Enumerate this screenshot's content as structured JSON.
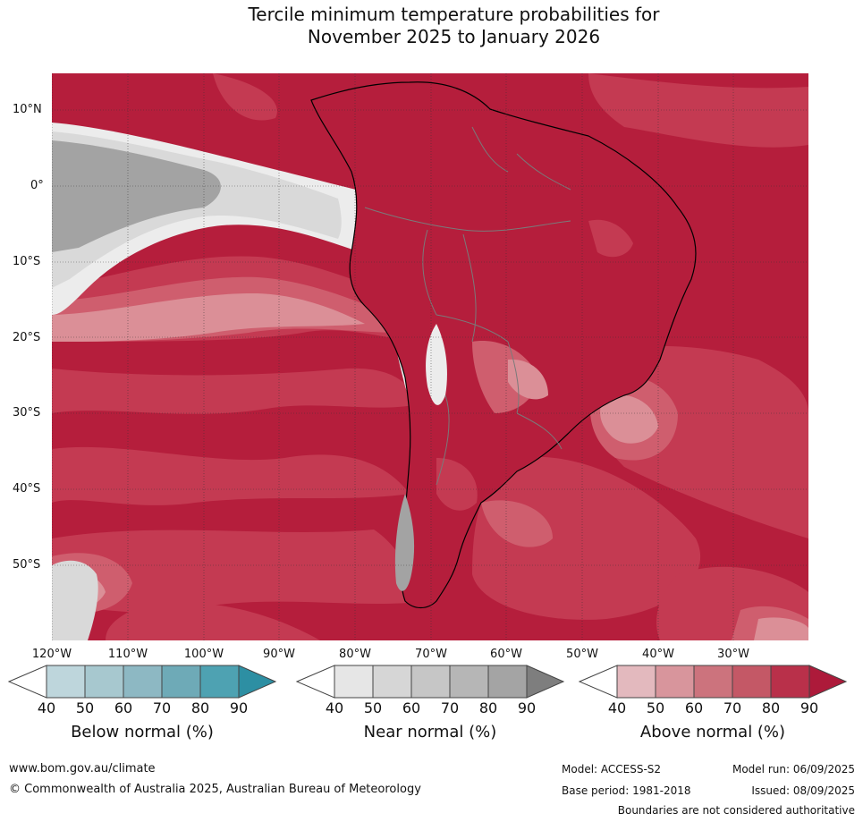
{
  "title": {
    "line1": "Tercile minimum temperature probabilities for",
    "line2": "November 2025 to January 2026"
  },
  "map": {
    "lat_labels": [
      "10°N",
      "0°",
      "10°S",
      "20°S",
      "30°S",
      "40°S",
      "50°S"
    ],
    "lon_labels": [
      "120°W",
      "110°W",
      "100°W",
      "90°W",
      "80°W",
      "70°W",
      "60°W",
      "50°W",
      "40°W",
      "30°W"
    ],
    "colors": {
      "ocean_above": "#b51e3c",
      "above_80": "#c43a52",
      "above_70": "#cf5e6e",
      "above_60": "#db8f97",
      "near_90": "#a3a3a3",
      "near_50": "#d9d9d9",
      "near_40": "#ececec",
      "coast": "#000000",
      "borders": "#7a7a7a"
    }
  },
  "legends": [
    {
      "title": "Below normal (%)",
      "ticks": [
        "40",
        "50",
        "60",
        "70",
        "80",
        "90"
      ],
      "colors": [
        "#ffffff",
        "#bed6dc",
        "#a7c8cf",
        "#8db8c3",
        "#6eaab7",
        "#4ea2b2",
        "#2d8fa3"
      ]
    },
    {
      "title": "Near normal (%)",
      "ticks": [
        "40",
        "50",
        "60",
        "70",
        "80",
        "90"
      ],
      "colors": [
        "#ffffff",
        "#e6e6e6",
        "#d6d6d6",
        "#c6c6c6",
        "#b6b6b6",
        "#a4a4a4",
        "#7e7e7e"
      ]
    },
    {
      "title": "Above normal (%)",
      "ticks": [
        "40",
        "50",
        "60",
        "70",
        "80",
        "90"
      ],
      "colors": [
        "#ffffff",
        "#e3b9be",
        "#d8959c",
        "#cc737d",
        "#c45866",
        "#b9304a",
        "#ad1a3a"
      ]
    }
  ],
  "footer": {
    "website": "www.bom.gov.au/climate",
    "copyright": "© Commonwealth of Australia 2025, Australian Bureau of Meteorology",
    "model": "Model: ACCESS-S2",
    "base_period": "Base period: 1981-2018",
    "model_run": "Model run: 06/09/2025",
    "issued": "Issued: 08/09/2025",
    "disclaimer": "Boundaries are not considered authoritative"
  }
}
